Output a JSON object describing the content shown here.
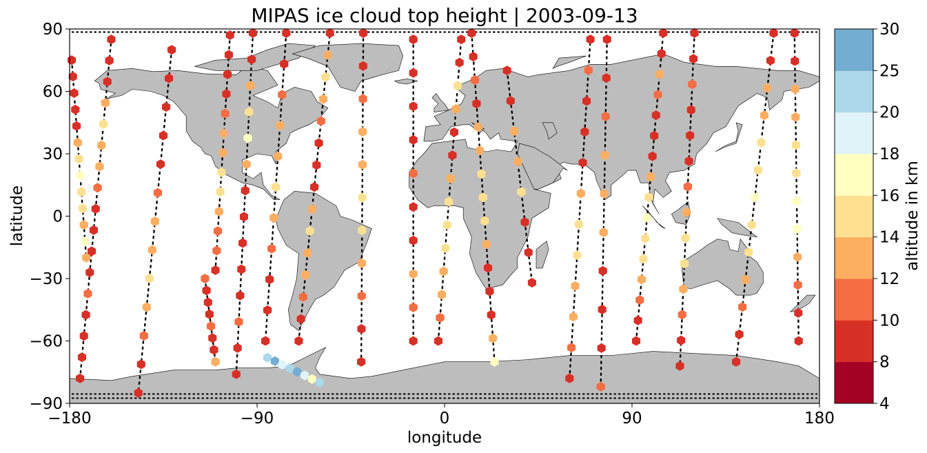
{
  "title": "MIPAS ice cloud top height | 2003-09-13",
  "xlabel": "longitude",
  "ylabel": "latitude",
  "x_ticks": [
    "−180",
    "−90",
    "0",
    "90",
    "180"
  ],
  "y_ticks": [
    "90",
    "60",
    "30",
    "0",
    "−30",
    "−60",
    "−90"
  ],
  "colorbar": {
    "label": "altitude in km",
    "bounds": [
      4,
      8,
      10,
      12,
      14,
      16,
      18,
      20,
      25,
      30
    ],
    "tick_labels": [
      "4",
      "8",
      "10",
      "12",
      "14",
      "16",
      "18",
      "20",
      "25",
      "30"
    ],
    "colors": [
      "#a50026",
      "#d73027",
      "#f46d43",
      "#fdae61",
      "#fee090",
      "#ffffbf",
      "#e0f3f8",
      "#abd9e9",
      "#74add1",
      "#4575b4",
      "#313695"
    ]
  },
  "chart_data": {
    "type": "scatter",
    "projection": "plate-carree",
    "xlim": [
      -180,
      180
    ],
    "ylim": [
      -90,
      90
    ],
    "land_color": "#bdbdbd",
    "marker": "hexagon",
    "value": "ice cloud top height (km)",
    "tracks": [
      {
        "lon_start": -179,
        "lat_start": 75,
        "lon_end": -172,
        "lat_end": -20,
        "heights": [
          8,
          8,
          9,
          8,
          9,
          12,
          14,
          16,
          15,
          14,
          12,
          17,
          12
        ]
      },
      {
        "lon_start": -175,
        "lat_start": -78,
        "lon_end": -160,
        "lat_end": 85,
        "heights": [
          8,
          9,
          8,
          9,
          10,
          8,
          9,
          8,
          9,
          10,
          12,
          13,
          14,
          12,
          9,
          8,
          9
        ]
      },
      {
        "lon_start": -131,
        "lat_start": 80,
        "lon_end": -147,
        "lat_end": -85,
        "heights": [
          8,
          8,
          9,
          8,
          9,
          10,
          12,
          13,
          14,
          12,
          11,
          8,
          9
        ]
      },
      {
        "lon_start": -115,
        "lat_start": -30,
        "lon_end": -110,
        "lat_end": -70,
        "heights": [
          10,
          9,
          8,
          9,
          10,
          8,
          9,
          12
        ]
      },
      {
        "lon_start": -103,
        "lat_start": 87,
        "lon_end": -110,
        "lat_end": -26,
        "heights": [
          8,
          9,
          8,
          9,
          10,
          12,
          13,
          14,
          15,
          12,
          11,
          10,
          9
        ]
      },
      {
        "lon_start": -100,
        "lat_start": -76,
        "lon_end": -92,
        "lat_end": 88,
        "heights": [
          8,
          9,
          10,
          9,
          8,
          9,
          8,
          9,
          12,
          16,
          15,
          13,
          9,
          8
        ]
      },
      {
        "lon_start": -76,
        "lat_start": 88,
        "lon_end": -86,
        "lat_end": -60,
        "heights": [
          8,
          9,
          10,
          12,
          13,
          14,
          12,
          10,
          9,
          8,
          9
        ]
      },
      {
        "lon_start": -70,
        "lat_start": -60,
        "lon_end": -55,
        "lat_end": 88,
        "heights": [
          8,
          9,
          10,
          12,
          13,
          14,
          12,
          9,
          8,
          9,
          10,
          12,
          14,
          12,
          9
        ]
      },
      {
        "lon_start": -39,
        "lat_start": 88,
        "lon_end": -40,
        "lat_end": -70,
        "heights": [
          8,
          9,
          10,
          12,
          13,
          14,
          15,
          12,
          10,
          9,
          8
        ]
      },
      {
        "lon_start": -15,
        "lat_start": 85,
        "lon_end": -15,
        "lat_end": -60,
        "heights": [
          8,
          9,
          8,
          9,
          10,
          8,
          9,
          12,
          11,
          9
        ]
      },
      {
        "lon_start": -3,
        "lat_start": -60,
        "lon_end": 8,
        "lat_end": 85,
        "heights": [
          9,
          10,
          12,
          13,
          14,
          15,
          14,
          12,
          9,
          8,
          13,
          14,
          8,
          9
        ]
      },
      {
        "lon_start": 13,
        "lat_start": 88,
        "lon_end": 24,
        "lat_end": -70,
        "heights": [
          8,
          9,
          10,
          9,
          12,
          13,
          14,
          15,
          14,
          12,
          9,
          8,
          9,
          12,
          16
        ]
      },
      {
        "lon_start": 30,
        "lat_start": 70,
        "lon_end": 42,
        "lat_end": -32,
        "heights": [
          8,
          9,
          13,
          12,
          14,
          9,
          8,
          9
        ]
      },
      {
        "lon_start": 60,
        "lat_start": -78,
        "lon_end": 70,
        "lat_end": 85,
        "heights": [
          9,
          10,
          12,
          13,
          14,
          15,
          12,
          9,
          8,
          9,
          10,
          8
        ]
      },
      {
        "lon_start": 78,
        "lat_start": 85,
        "lon_end": 75,
        "lat_end": -82,
        "heights": [
          8,
          9,
          10,
          12,
          13,
          12,
          9,
          8,
          9,
          10
        ]
      },
      {
        "lon_start": 92,
        "lat_start": -60,
        "lon_end": 105,
        "lat_end": 88,
        "heights": [
          8,
          9,
          10,
          12,
          14,
          15,
          16,
          14,
          12,
          9,
          8,
          9,
          10,
          12,
          9,
          8
        ]
      },
      {
        "lon_start": 120,
        "lat_start": 88,
        "lon_end": 113,
        "lat_end": -72,
        "heights": [
          8,
          9,
          10,
          9,
          8,
          9,
          10,
          12,
          14,
          15,
          12,
          10,
          9,
          8
        ]
      },
      {
        "lon_start": 140,
        "lat_start": -70,
        "lon_end": 158,
        "lat_end": 88,
        "heights": [
          8,
          9,
          10,
          12,
          14,
          15,
          16,
          15,
          14,
          12,
          13,
          9,
          8
        ]
      },
      {
        "lon_start": 168,
        "lat_start": 88,
        "lon_end": 170,
        "lat_end": -60,
        "heights": [
          8,
          9,
          12,
          13,
          14,
          15,
          17,
          16,
          12,
          10,
          9,
          8
        ]
      },
      {
        "lon_start": -85,
        "lat_start": -68,
        "lon_end": -60,
        "lat_end": -80,
        "heights": [
          20,
          25,
          18,
          20,
          25,
          18,
          16,
          20
        ]
      }
    ]
  }
}
